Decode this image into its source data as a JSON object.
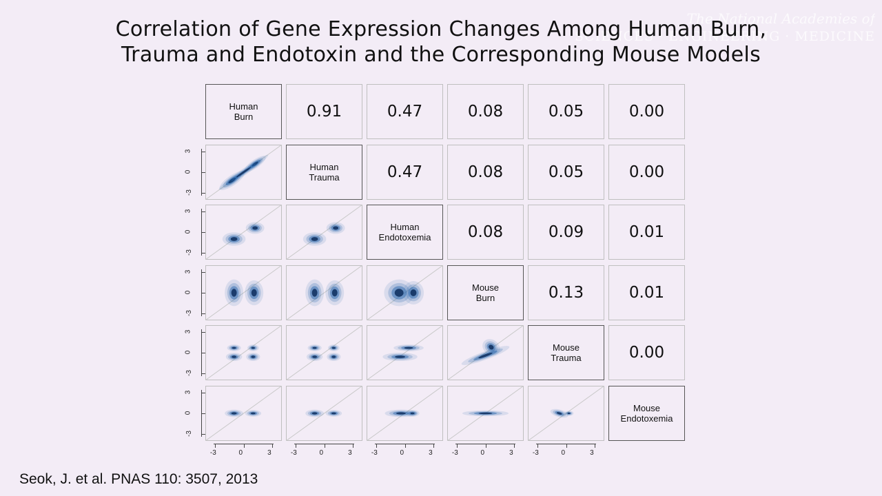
{
  "title": {
    "line1": "Correlation of Gene Expression Changes Among Human Burn,",
    "line2": "Trauma and Endotoxin and the Corresponding Mouse Models"
  },
  "watermark": {
    "line1": "The National Academies of",
    "line2": "SCIENCES · ENGINEERING · MEDICINE"
  },
  "citation": "Seok, J. et al. PNAS 110: 3507, 2013",
  "chart_data": {
    "type": "scatter-matrix",
    "variables": [
      [
        "Human",
        "Burn"
      ],
      [
        "Human",
        "Trauma"
      ],
      [
        "Human",
        "Endotoxemia"
      ],
      [
        "Mouse",
        "Burn"
      ],
      [
        "Mouse",
        "Trauma"
      ],
      [
        "Mouse",
        "Endotoxemia"
      ]
    ],
    "correlations": [
      {
        "row": 0,
        "col": 1,
        "value": "0.91"
      },
      {
        "row": 0,
        "col": 2,
        "value": "0.47"
      },
      {
        "row": 0,
        "col": 3,
        "value": "0.08"
      },
      {
        "row": 0,
        "col": 4,
        "value": "0.05"
      },
      {
        "row": 0,
        "col": 5,
        "value": "0.00"
      },
      {
        "row": 1,
        "col": 2,
        "value": "0.47"
      },
      {
        "row": 1,
        "col": 3,
        "value": "0.08"
      },
      {
        "row": 1,
        "col": 4,
        "value": "0.05"
      },
      {
        "row": 1,
        "col": 5,
        "value": "0.00"
      },
      {
        "row": 2,
        "col": 3,
        "value": "0.08"
      },
      {
        "row": 2,
        "col": 4,
        "value": "0.09"
      },
      {
        "row": 2,
        "col": 5,
        "value": "0.01"
      },
      {
        "row": 3,
        "col": 4,
        "value": "0.13"
      },
      {
        "row": 3,
        "col": 5,
        "value": "0.01"
      },
      {
        "row": 4,
        "col": 5,
        "value": "0.00"
      }
    ],
    "axis_ticks": [
      "-3",
      "0",
      "3"
    ],
    "axis_range": [
      -4,
      4
    ],
    "density_color": "#1f5fa8",
    "grid": false
  }
}
